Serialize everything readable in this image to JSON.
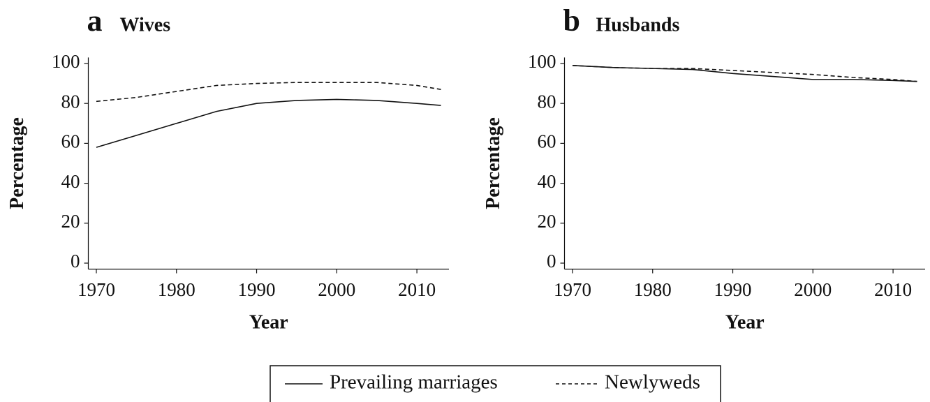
{
  "chart_data": [
    {
      "type": "line",
      "panel": "a",
      "title": "Wives",
      "xlabel": "Year",
      "ylabel": "Percentage",
      "x": [
        1970,
        1975,
        1980,
        1985,
        1990,
        1995,
        2000,
        2005,
        2010,
        2013
      ],
      "series": [
        {
          "name": "Prevailing marriages",
          "color": "#111111",
          "dash": false,
          "values": [
            58,
            64,
            70,
            76,
            80,
            81.5,
            82,
            81.5,
            80,
            79
          ]
        },
        {
          "name": "Newlyweds",
          "color": "#111111",
          "dash": true,
          "values": [
            81,
            83,
            86,
            89,
            90,
            90.5,
            90.5,
            90.5,
            89,
            87
          ]
        }
      ],
      "xlim": [
        1969,
        2014
      ],
      "ylim": [
        -3,
        103
      ],
      "xticks": [
        1970,
        1980,
        1990,
        2000,
        2010
      ],
      "yticks": [
        0,
        20,
        40,
        60,
        80,
        100
      ]
    },
    {
      "type": "line",
      "panel": "b",
      "title": "Husbands",
      "xlabel": "Year",
      "ylabel": "Percentage",
      "x": [
        1970,
        1975,
        1980,
        1985,
        1990,
        1995,
        2000,
        2005,
        2010,
        2013
      ],
      "series": [
        {
          "color": "#111111",
          "dash": false,
          "values": [
            99,
            98,
            97.5,
            97,
            95,
            93.5,
            92,
            92,
            91.5,
            91
          ]
        },
        {
          "color": "#111111",
          "dash": true,
          "values": [
            99,
            98,
            97.5,
            97.5,
            96.5,
            95.5,
            94.5,
            93,
            92,
            91
          ]
        }
      ],
      "xlim": [
        1969,
        2014
      ],
      "ylim": [
        -3,
        103
      ],
      "xticks": [
        1970,
        1980,
        1990,
        2000,
        2010
      ],
      "yticks": [
        0,
        20,
        40,
        60,
        80,
        100
      ]
    }
  ]
}
